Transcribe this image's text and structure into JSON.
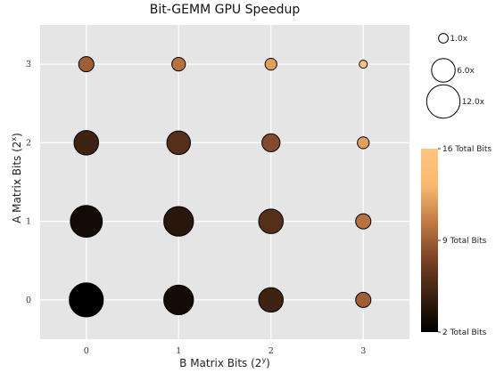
{
  "chart_data": {
    "type": "scatter",
    "title": "Bit-GEMM GPU Speedup",
    "xlabel": "B Matrix Bits (2",
    "xlabel_sup": "y",
    "xlabel_suffix": ")",
    "ylabel": "A Matrix Bits (2",
    "ylabel_sup": "x",
    "ylabel_suffix": ")",
    "x_ticks": [
      "0",
      "1",
      "2",
      "3"
    ],
    "y_ticks": [
      "0",
      "1",
      "2",
      "3"
    ],
    "xlim": [
      -0.5,
      3.5
    ],
    "ylim": [
      -0.5,
      3.5
    ],
    "grid": true,
    "background": "#e5e5e5",
    "size_legend": {
      "entries": [
        {
          "label": "1.0x",
          "value": 1.0
        },
        {
          "label": "6.0x",
          "value": 6.0
        },
        {
          "label": "12.0x",
          "value": 12.0
        }
      ]
    },
    "colorbar": {
      "min": 2,
      "max": 16,
      "ticks": [
        {
          "value": 16,
          "label": "16 Total Bits"
        },
        {
          "value": 9,
          "label": "9 Total Bits"
        },
        {
          "value": 2,
          "label": "2 Total Bits"
        }
      ],
      "colors": [
        "#000000",
        "#3a2010",
        "#7a4325",
        "#c27a45",
        "#fbb96e",
        "#ffc57f"
      ]
    },
    "points": [
      {
        "x": 0,
        "y": 0,
        "speedup": 12.5,
        "total_bits": 2
      },
      {
        "x": 1,
        "y": 0,
        "speedup": 9.5,
        "total_bits": 3
      },
      {
        "x": 2,
        "y": 0,
        "speedup": 6.5,
        "total_bits": 5
      },
      {
        "x": 3,
        "y": 0,
        "speedup": 2.5,
        "total_bits": 9
      },
      {
        "x": 0,
        "y": 1,
        "speedup": 11.0,
        "total_bits": 3
      },
      {
        "x": 1,
        "y": 1,
        "speedup": 9.5,
        "total_bits": 4
      },
      {
        "x": 2,
        "y": 1,
        "speedup": 6.5,
        "total_bits": 6
      },
      {
        "x": 3,
        "y": 1,
        "speedup": 2.5,
        "total_bits": 10
      },
      {
        "x": 0,
        "y": 2,
        "speedup": 6.5,
        "total_bits": 5
      },
      {
        "x": 1,
        "y": 2,
        "speedup": 6.0,
        "total_bits": 6
      },
      {
        "x": 2,
        "y": 2,
        "speedup": 3.5,
        "total_bits": 8
      },
      {
        "x": 3,
        "y": 2,
        "speedup": 1.5,
        "total_bits": 12
      },
      {
        "x": 0,
        "y": 3,
        "speedup": 2.5,
        "total_bits": 9
      },
      {
        "x": 1,
        "y": 3,
        "speedup": 2.0,
        "total_bits": 10
      },
      {
        "x": 2,
        "y": 3,
        "speedup": 1.5,
        "total_bits": 12
      },
      {
        "x": 3,
        "y": 3,
        "speedup": 0.7,
        "total_bits": 16
      }
    ]
  }
}
